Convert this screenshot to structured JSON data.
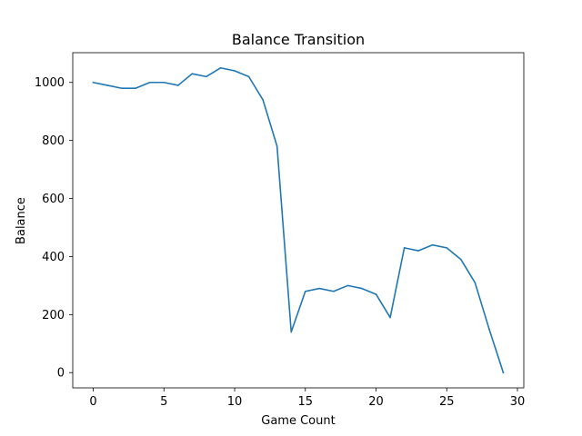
{
  "chart_data": {
    "type": "line",
    "title": "Balance Transition",
    "xlabel": "Game Count",
    "ylabel": "Balance",
    "xlim": [
      -1.45,
      30.45
    ],
    "ylim": [
      -52.5,
      1102.5
    ],
    "xticks": [
      0,
      5,
      10,
      15,
      20,
      25,
      30
    ],
    "yticks": [
      0,
      200,
      400,
      600,
      800,
      1000
    ],
    "grid": false,
    "series": [
      {
        "color": "#1f77b4",
        "x": [
          0,
          1,
          2,
          3,
          4,
          5,
          6,
          7,
          8,
          9,
          10,
          11,
          12,
          13,
          14,
          15,
          16,
          17,
          18,
          19,
          20,
          21,
          22,
          23,
          24,
          25,
          26,
          27,
          28,
          29
        ],
        "y": [
          1000,
          990,
          980,
          980,
          1000,
          1000,
          990,
          1030,
          1020,
          1050,
          1040,
          1020,
          940,
          780,
          140,
          280,
          290,
          280,
          300,
          290,
          270,
          190,
          430,
          420,
          440,
          430,
          390,
          310,
          150,
          0
        ]
      }
    ]
  }
}
